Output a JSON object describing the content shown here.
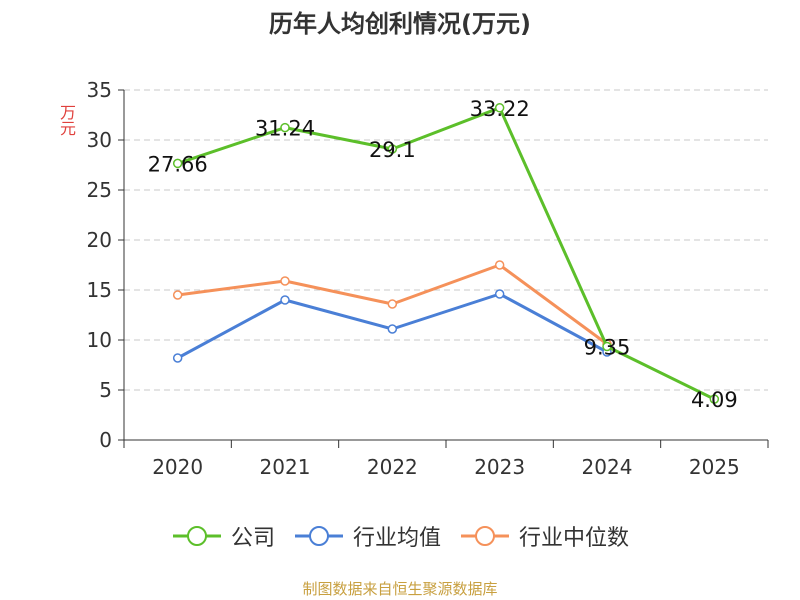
{
  "chart_data": {
    "type": "line",
    "title": "历年人均创利情况(万元)",
    "ylabel": "万元",
    "xlabel": "",
    "categories": [
      "2020",
      "2021",
      "2022",
      "2023",
      "2024",
      "2025"
    ],
    "ylim": [
      0,
      35
    ],
    "yticks": [
      0,
      5,
      10,
      15,
      20,
      25,
      30,
      35
    ],
    "grid": true,
    "legend_position": "bottom",
    "series": [
      {
        "name": "公司",
        "color": "#5cbf2a",
        "values": [
          27.66,
          31.24,
          29.1,
          33.22,
          9.35,
          4.09
        ],
        "show_labels": true
      },
      {
        "name": "行业均值",
        "color": "#4a7fd6",
        "values": [
          8.2,
          14.0,
          11.1,
          14.6,
          8.8,
          null
        ],
        "show_labels": false
      },
      {
        "name": "行业中位数",
        "color": "#f5915a",
        "values": [
          14.5,
          15.9,
          13.6,
          17.5,
          9.6,
          null
        ],
        "show_labels": false
      }
    ]
  },
  "source": "制图数据来自恒生聚源数据库"
}
